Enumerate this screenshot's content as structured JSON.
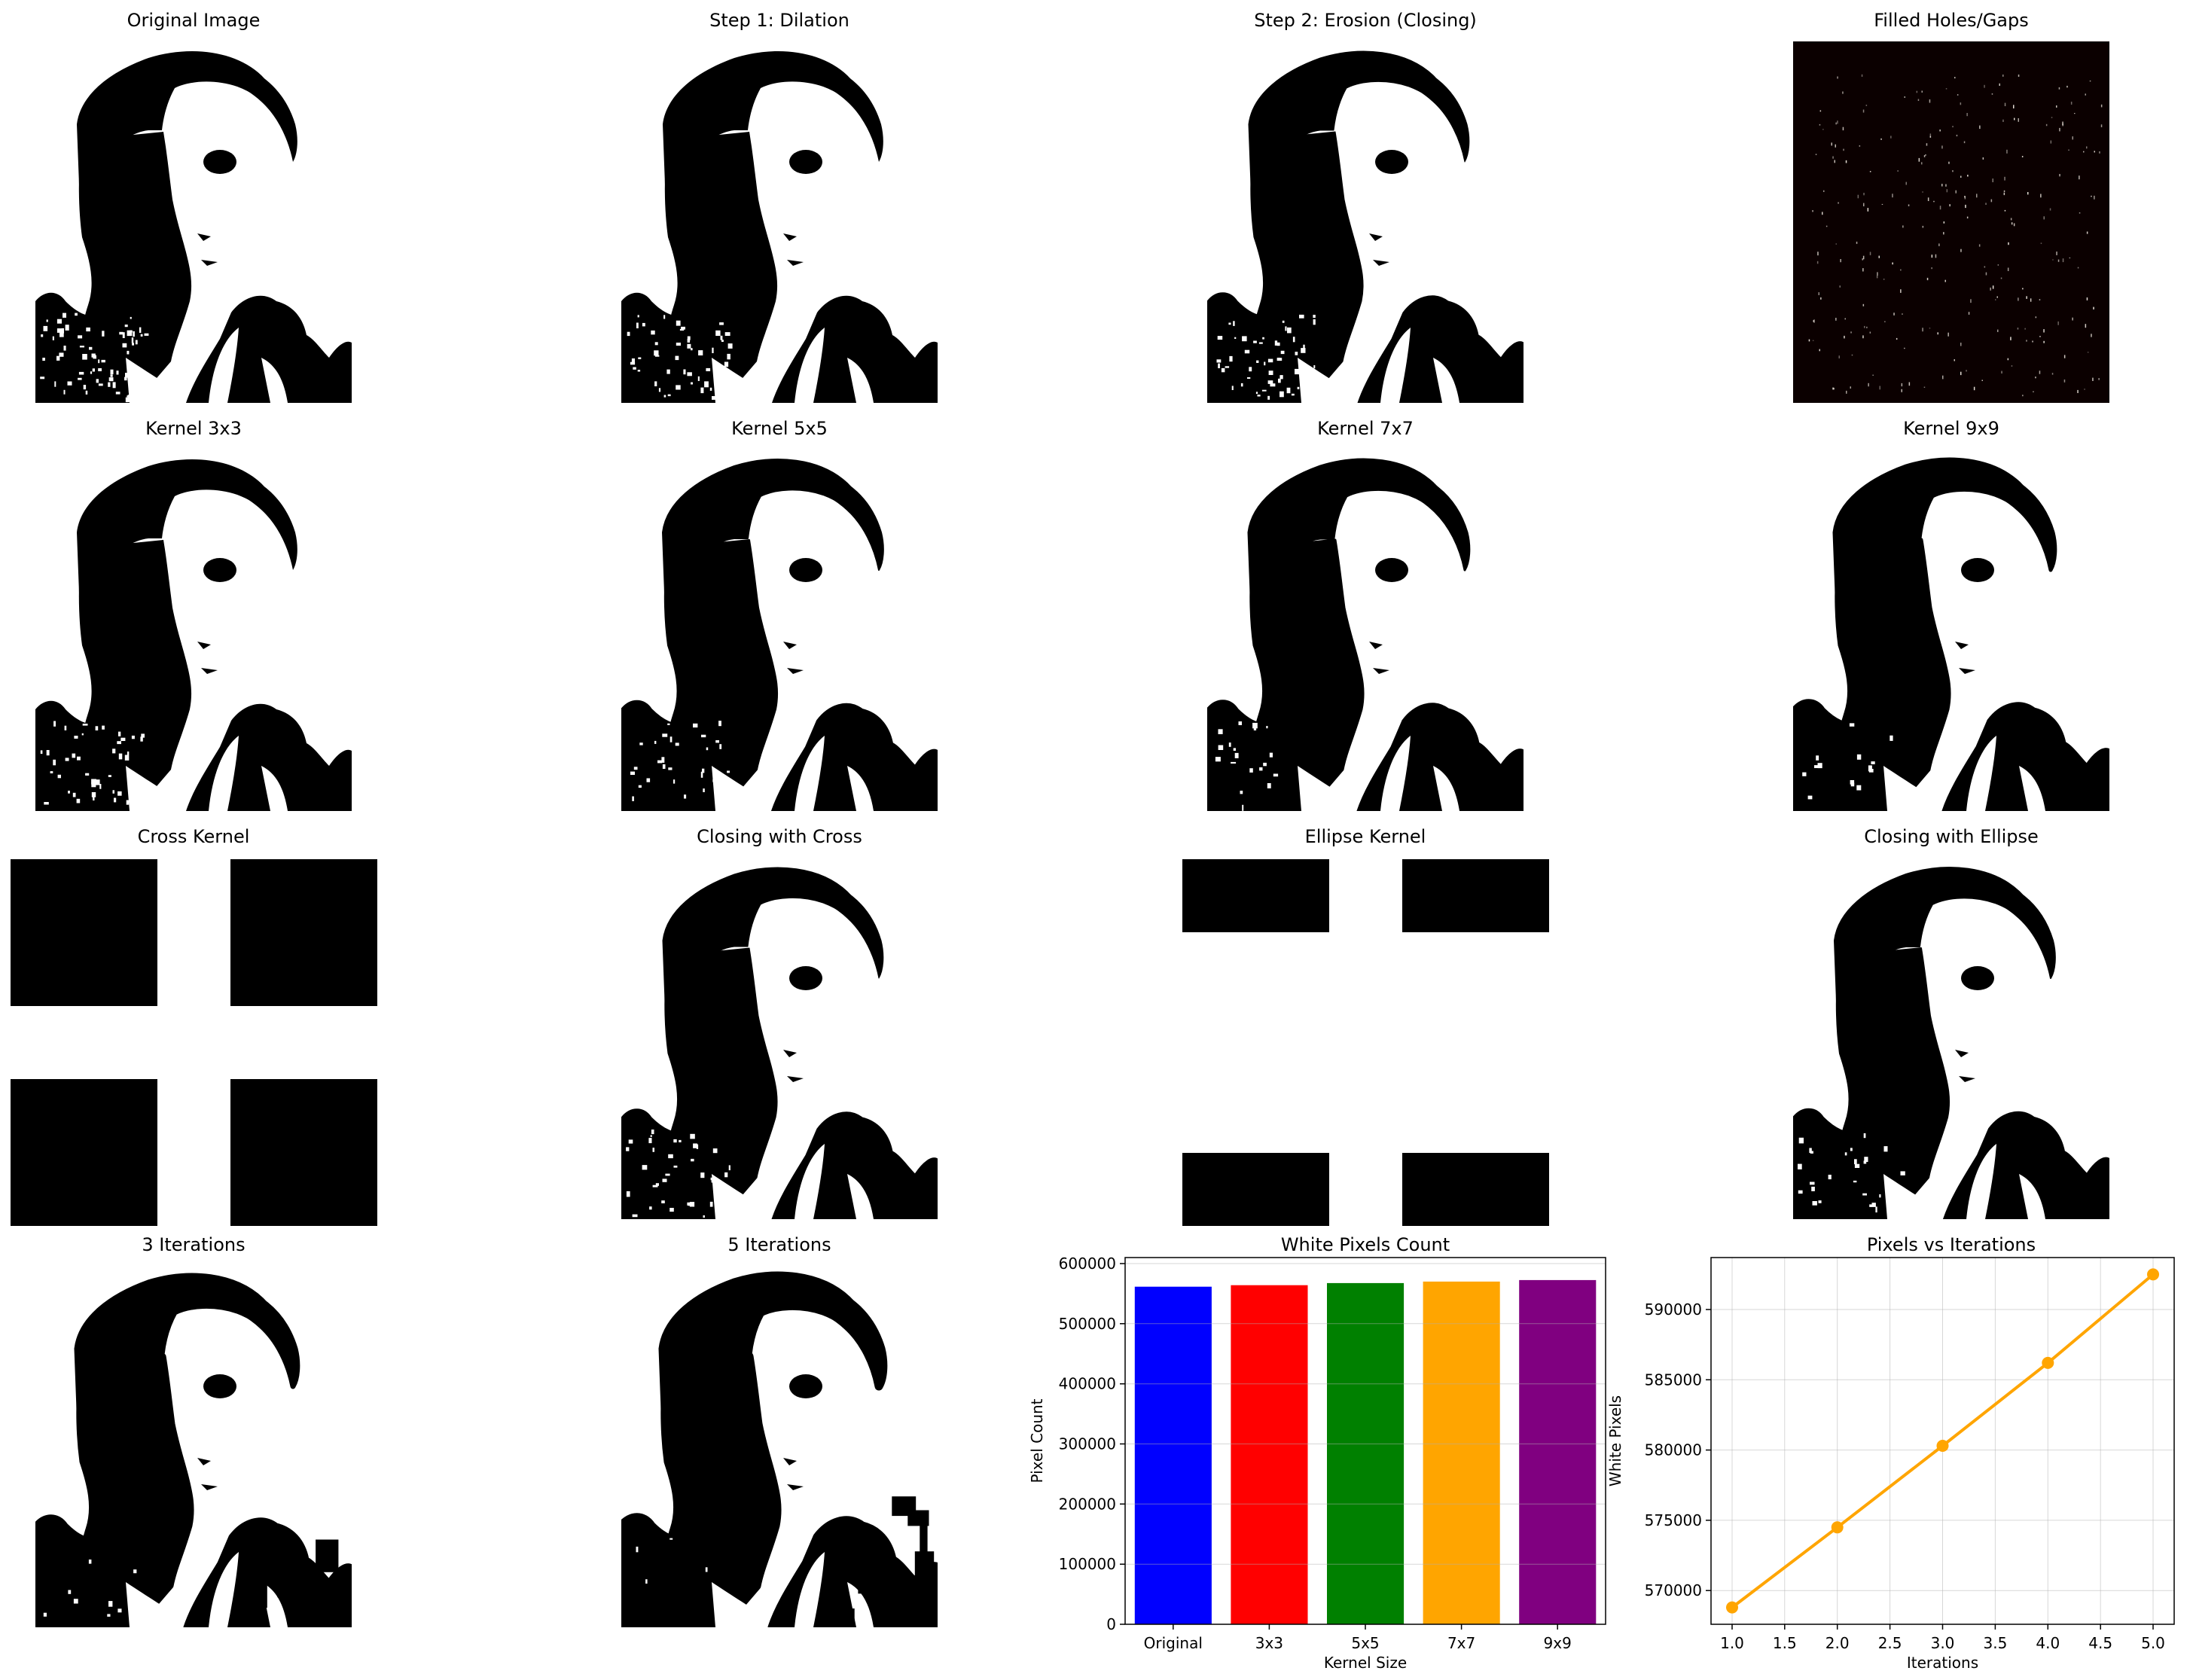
{
  "figure": {
    "panels": [
      {
        "title": "Original Image",
        "kind": "image",
        "variant": "orig"
      },
      {
        "title": "Step 1: Dilation",
        "kind": "image",
        "variant": "dil"
      },
      {
        "title": "Step 2: Erosion (Closing)",
        "kind": "image",
        "variant": "close"
      },
      {
        "title": "Filled Holes/Gaps",
        "kind": "diff"
      },
      {
        "title": "Kernel 3x3",
        "kind": "image",
        "variant": "k3"
      },
      {
        "title": "Kernel 5x5",
        "kind": "image",
        "variant": "k5"
      },
      {
        "title": "Kernel 7x7",
        "kind": "image",
        "variant": "k7"
      },
      {
        "title": "Kernel 9x9",
        "kind": "image",
        "variant": "k9"
      },
      {
        "title": "Cross Kernel",
        "kind": "cross"
      },
      {
        "title": "Closing with Cross",
        "kind": "image",
        "variant": "cross"
      },
      {
        "title": "Ellipse Kernel",
        "kind": "ellipse"
      },
      {
        "title": "Closing with Ellipse",
        "kind": "image",
        "variant": "ell"
      },
      {
        "title": "3 Iterations",
        "kind": "image",
        "variant": "it3"
      },
      {
        "title": "5 Iterations",
        "kind": "image",
        "variant": "it5"
      },
      {
        "title": "White Pixels Count",
        "kind": "bar"
      },
      {
        "title": "Pixels vs Iterations",
        "kind": "line"
      }
    ],
    "colors": {
      "background": "#ffffff",
      "foreground": "#000000",
      "diff_background": "#0b0000",
      "diff_specks": "#e8e0d8"
    }
  },
  "chart_data": [
    {
      "type": "bar",
      "title": "White Pixels Count",
      "xlabel": "Kernel Size",
      "ylabel": "Pixel Count",
      "categories": [
        "Original",
        "3x3",
        "5x5",
        "7x7",
        "9x9"
      ],
      "values": [
        561500,
        564000,
        567500,
        570000,
        572500
      ],
      "colors": [
        "#0000ff",
        "#ff0000",
        "#008000",
        "#ffa500",
        "#800080"
      ],
      "ylim": [
        0,
        610000
      ],
      "yticks": [
        0,
        100000,
        200000,
        300000,
        400000,
        500000,
        600000
      ],
      "grid": true
    },
    {
      "type": "line",
      "title": "Pixels vs Iterations",
      "xlabel": "Iterations",
      "ylabel": "White Pixels",
      "x": [
        1.0,
        2.0,
        3.0,
        4.0,
        5.0
      ],
      "y": [
        568800,
        574500,
        580300,
        586200,
        592500
      ],
      "color": "#ffa500",
      "xlim": [
        0.8,
        5.2
      ],
      "ylim": [
        567600,
        593700
      ],
      "xticks": [
        1.0,
        1.5,
        2.0,
        2.5,
        3.0,
        3.5,
        4.0,
        4.5,
        5.0
      ],
      "yticks": [
        570000,
        575000,
        580000,
        585000,
        590000
      ],
      "grid": true
    }
  ]
}
